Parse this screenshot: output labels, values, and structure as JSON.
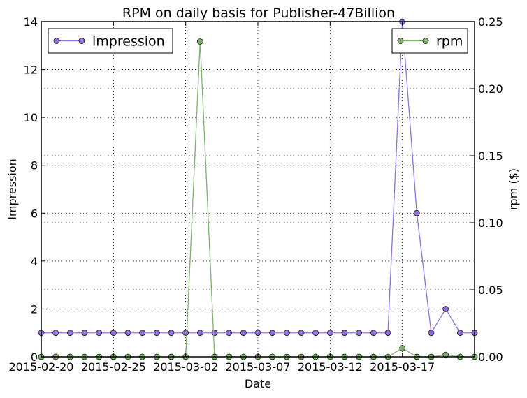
{
  "chart_data": {
    "type": "line",
    "title": "RPM on daily basis for Publisher-47Billion",
    "xlabel": "Date",
    "x": [
      "2015-02-20",
      "2015-02-21",
      "2015-02-22",
      "2015-02-23",
      "2015-02-24",
      "2015-02-25",
      "2015-02-26",
      "2015-02-27",
      "2015-02-28",
      "2015-03-01",
      "2015-03-02",
      "2015-03-03",
      "2015-03-04",
      "2015-03-05",
      "2015-03-06",
      "2015-03-07",
      "2015-03-08",
      "2015-03-09",
      "2015-03-10",
      "2015-03-11",
      "2015-03-12",
      "2015-03-13",
      "2015-03-14",
      "2015-03-15",
      "2015-03-16",
      "2015-03-17",
      "2015-03-18",
      "2015-03-19",
      "2015-03-20",
      "2015-03-21",
      "2015-03-22"
    ],
    "xticks": [
      "2015-02-20",
      "2015-02-25",
      "2015-03-02",
      "2015-03-07",
      "2015-03-12",
      "2015-03-17"
    ],
    "axes": {
      "left": {
        "label": "Impression",
        "ylim": [
          0,
          14
        ],
        "ticks": [
          "0",
          "2",
          "4",
          "6",
          "8",
          "10",
          "12",
          "14"
        ]
      },
      "right": {
        "label": "rpm ($)",
        "ylim": [
          0,
          0.25
        ],
        "ticks": [
          "0.00",
          "0.05",
          "0.10",
          "0.15",
          "0.20",
          "0.25"
        ]
      }
    },
    "grid": true,
    "series": [
      {
        "name": "impression",
        "axis": "left",
        "color": "#9370db",
        "marker": "circle",
        "legend": "upper-left",
        "values": [
          1,
          1,
          1,
          1,
          1,
          1,
          1,
          1,
          1,
          1,
          1,
          1,
          1,
          1,
          1,
          1,
          1,
          1,
          1,
          1,
          1,
          1,
          1,
          1,
          1,
          14,
          6,
          1,
          2,
          1,
          1
        ]
      },
      {
        "name": "rpm",
        "axis": "right",
        "color": "#7fb070",
        "marker": "circle",
        "legend": "upper-right",
        "values": [
          0,
          0,
          0,
          0,
          0,
          0,
          0,
          0,
          0,
          0,
          0,
          0.2352,
          0,
          0,
          0,
          0,
          0,
          0,
          0,
          0,
          0,
          0,
          0,
          0,
          0,
          0.0065,
          0,
          0,
          0.0015,
          0,
          0
        ]
      }
    ]
  }
}
